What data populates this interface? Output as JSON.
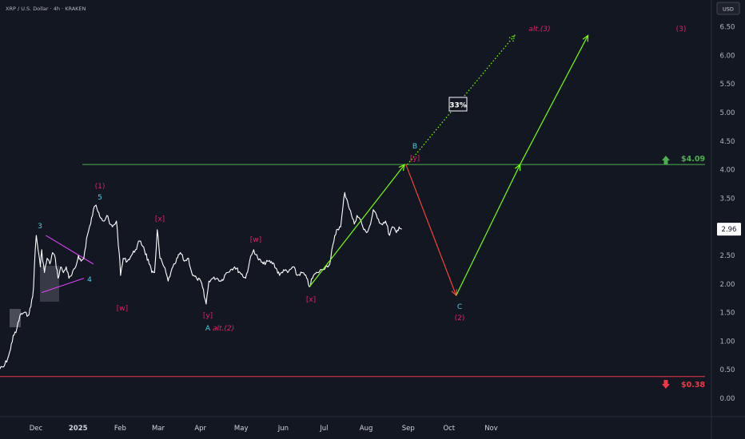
{
  "header": {
    "title": "XRP / U.S. Dollar · 4h · KRAKEN"
  },
  "axis": {
    "currency": "USD",
    "current_price": "2.96",
    "y_ticks": [
      "6.50",
      "6.00",
      "5.50",
      "5.00",
      "4.50",
      "4.00",
      "3.50",
      "3.00",
      "2.50",
      "2.00",
      "1.50",
      "1.00",
      "0.50",
      "0.00"
    ],
    "x_ticks": [
      "Dec",
      "2025",
      "Feb",
      "Mar",
      "Apr",
      "May",
      "Jun",
      "Jul",
      "Aug",
      "Sep",
      "Oct",
      "Nov"
    ]
  },
  "levels": {
    "target": {
      "value": 4.09,
      "label": "$4.09",
      "color": "#4caf50"
    },
    "invalidation": {
      "value": 0.38,
      "label": "$0.38",
      "color": "#f23645"
    }
  },
  "probability_box": "33%",
  "wave_labels": {
    "w3_cyan": "3",
    "w4_cyan": "4",
    "w5_cyan": "5",
    "w1_pink": "(1)",
    "w_pink_1": "[w]",
    "x_pink_1": "[x]",
    "y_pink_1": "[y]",
    "A_cyan": "A",
    "alt2": "alt.(2)",
    "w_pink_2": "[w]",
    "x_pink_2": "[x]",
    "B_cyan": "B",
    "y_pink_2": "[y]",
    "C_cyan": "C",
    "w2_pink": "(2)",
    "alt3": "alt.(3)",
    "w3_pink": "(3)"
  },
  "colors": {
    "cyan": "#4dd0e1",
    "pink": "#e91e63",
    "green": "#76ff03",
    "red": "#f44336",
    "price": "#ffffff",
    "grid_text": "#b2b5be"
  },
  "chart_data": {
    "type": "line",
    "title": "XRP / U.S. Dollar · 4h · KRAKEN",
    "ylim": [
      -0.35,
      6.9
    ],
    "y_scale": "linear",
    "grid": false,
    "series": [
      {
        "values_by_date": [
          [
            "2024-11-05",
            0.51
          ],
          [
            "2024-11-09",
            0.55
          ],
          [
            "2024-11-12",
            0.7
          ],
          [
            "2024-11-14",
            0.85
          ],
          [
            "2024-11-16",
            1.1
          ],
          [
            "2024-11-18",
            1.15
          ],
          [
            "2024-11-21",
            1.45
          ],
          [
            "2024-11-24",
            1.5
          ],
          [
            "2024-11-27",
            1.45
          ],
          [
            "2024-11-29",
            1.6
          ],
          [
            "2024-12-01",
            1.95
          ],
          [
            "2024-12-02",
            2.5
          ],
          [
            "2024-12-03",
            2.85
          ],
          [
            "2024-12-05",
            2.5
          ],
          [
            "2024-12-06",
            2.3
          ],
          [
            "2024-12-07",
            2.6
          ],
          [
            "2024-12-09",
            2.2
          ],
          [
            "2024-12-11",
            2.45
          ],
          [
            "2024-12-13",
            2.35
          ],
          [
            "2024-12-15",
            2.55
          ],
          [
            "2024-12-17",
            2.45
          ],
          [
            "2024-12-19",
            2.1
          ],
          [
            "2024-12-21",
            2.3
          ],
          [
            "2024-12-23",
            2.2
          ],
          [
            "2024-12-25",
            2.3
          ],
          [
            "2024-12-27",
            2.1
          ],
          [
            "2024-12-29",
            2.15
          ],
          [
            "2025-01-01",
            2.3
          ],
          [
            "2025-01-03",
            2.5
          ],
          [
            "2025-01-05",
            2.4
          ],
          [
            "2025-01-07",
            2.45
          ],
          [
            "2025-01-09",
            2.8
          ],
          [
            "2025-01-12",
            3.05
          ],
          [
            "2025-01-14",
            3.3
          ],
          [
            "2025-01-16",
            3.38
          ],
          [
            "2025-01-18",
            3.25
          ],
          [
            "2025-01-20",
            3.15
          ],
          [
            "2025-01-22",
            3.1
          ],
          [
            "2025-01-24",
            3.2
          ],
          [
            "2025-01-26",
            3.05
          ],
          [
            "2025-01-28",
            3.0
          ],
          [
            "2025-01-31",
            3.1
          ],
          [
            "2025-02-02",
            2.55
          ],
          [
            "2025-02-03",
            2.15
          ],
          [
            "2025-02-05",
            2.45
          ],
          [
            "2025-02-08",
            2.4
          ],
          [
            "2025-02-11",
            2.5
          ],
          [
            "2025-02-14",
            2.6
          ],
          [
            "2025-02-17",
            2.75
          ],
          [
            "2025-02-20",
            2.65
          ],
          [
            "2025-02-24",
            2.35
          ],
          [
            "2025-02-26",
            2.2
          ],
          [
            "2025-02-28",
            2.2
          ],
          [
            "2025-03-02",
            2.95
          ],
          [
            "2025-03-04",
            2.45
          ],
          [
            "2025-03-07",
            2.3
          ],
          [
            "2025-03-10",
            2.05
          ],
          [
            "2025-03-12",
            2.2
          ],
          [
            "2025-03-15",
            2.35
          ],
          [
            "2025-03-19",
            2.55
          ],
          [
            "2025-03-22",
            2.4
          ],
          [
            "2025-03-25",
            2.45
          ],
          [
            "2025-03-28",
            2.15
          ],
          [
            "2025-03-31",
            2.1
          ],
          [
            "2025-04-03",
            2.05
          ],
          [
            "2025-04-07",
            1.65
          ],
          [
            "2025-04-09",
            2.05
          ],
          [
            "2025-04-12",
            2.1
          ],
          [
            "2025-04-15",
            2.1
          ],
          [
            "2025-04-18",
            2.05
          ],
          [
            "2025-04-22",
            2.2
          ],
          [
            "2025-04-25",
            2.25
          ],
          [
            "2025-04-28",
            2.3
          ],
          [
            "2025-05-02",
            2.2
          ],
          [
            "2025-05-06",
            2.1
          ],
          [
            "2025-05-09",
            2.4
          ],
          [
            "2025-05-12",
            2.6
          ],
          [
            "2025-05-15",
            2.45
          ],
          [
            "2025-05-19",
            2.35
          ],
          [
            "2025-05-23",
            2.4
          ],
          [
            "2025-05-27",
            2.35
          ],
          [
            "2025-05-31",
            2.15
          ],
          [
            "2025-06-03",
            2.25
          ],
          [
            "2025-06-06",
            2.2
          ],
          [
            "2025-06-10",
            2.3
          ],
          [
            "2025-06-13",
            2.15
          ],
          [
            "2025-06-17",
            2.2
          ],
          [
            "2025-06-20",
            2.1
          ],
          [
            "2025-06-22",
            1.95
          ],
          [
            "2025-06-25",
            2.15
          ],
          [
            "2025-06-28",
            2.2
          ],
          [
            "2025-07-01",
            2.25
          ],
          [
            "2025-07-04",
            2.3
          ],
          [
            "2025-07-07",
            2.35
          ],
          [
            "2025-07-10",
            2.75
          ],
          [
            "2025-07-12",
            2.95
          ],
          [
            "2025-07-15",
            3.0
          ],
          [
            "2025-07-18",
            3.6
          ],
          [
            "2025-07-20",
            3.45
          ],
          [
            "2025-07-23",
            3.2
          ],
          [
            "2025-07-25",
            3.05
          ],
          [
            "2025-07-27",
            3.2
          ],
          [
            "2025-07-30",
            3.1
          ],
          [
            "2025-08-01",
            2.95
          ],
          [
            "2025-08-03",
            2.9
          ],
          [
            "2025-08-06",
            3.05
          ],
          [
            "2025-08-08",
            3.3
          ],
          [
            "2025-08-11",
            3.15
          ],
          [
            "2025-08-14",
            3.05
          ],
          [
            "2025-08-17",
            3.1
          ],
          [
            "2025-08-20",
            2.85
          ],
          [
            "2025-08-22",
            3.0
          ],
          [
            "2025-08-25",
            2.9
          ],
          [
            "2025-08-27",
            3.0
          ],
          [
            "2025-08-29",
            2.96
          ]
        ]
      }
    ],
    "horizontal_lines": [
      {
        "value": 4.09,
        "label": "$4.09"
      },
      {
        "value": 0.38,
        "label": "$0.38"
      }
    ],
    "projection_paths": [
      {
        "kind": "green_solid",
        "points": [
          [
            "2025-06-22",
            1.95
          ],
          [
            "2025-08-31",
            4.09
          ]
        ]
      },
      {
        "kind": "red_solid",
        "points": [
          [
            "2025-09-01",
            4.09
          ],
          [
            "2025-10-08",
            1.8
          ]
        ]
      },
      {
        "kind": "green_solid",
        "points": [
          [
            "2025-10-08",
            1.8
          ],
          [
            "2025-11-24",
            4.09
          ],
          [
            "2026-01-13",
            6.35
          ]
        ]
      },
      {
        "kind": "green_dotted",
        "points": [
          [
            "2025-09-02",
            4.09
          ],
          [
            "2025-11-20",
            6.35
          ]
        ]
      }
    ],
    "triangle": {
      "upper": [
        [
          "2024-12-10",
          2.85
        ],
        [
          "2025-01-14",
          2.35
        ]
      ],
      "lower": [
        [
          "2024-12-07",
          1.85
        ],
        [
          "2025-01-07",
          2.1
        ]
      ]
    }
  }
}
